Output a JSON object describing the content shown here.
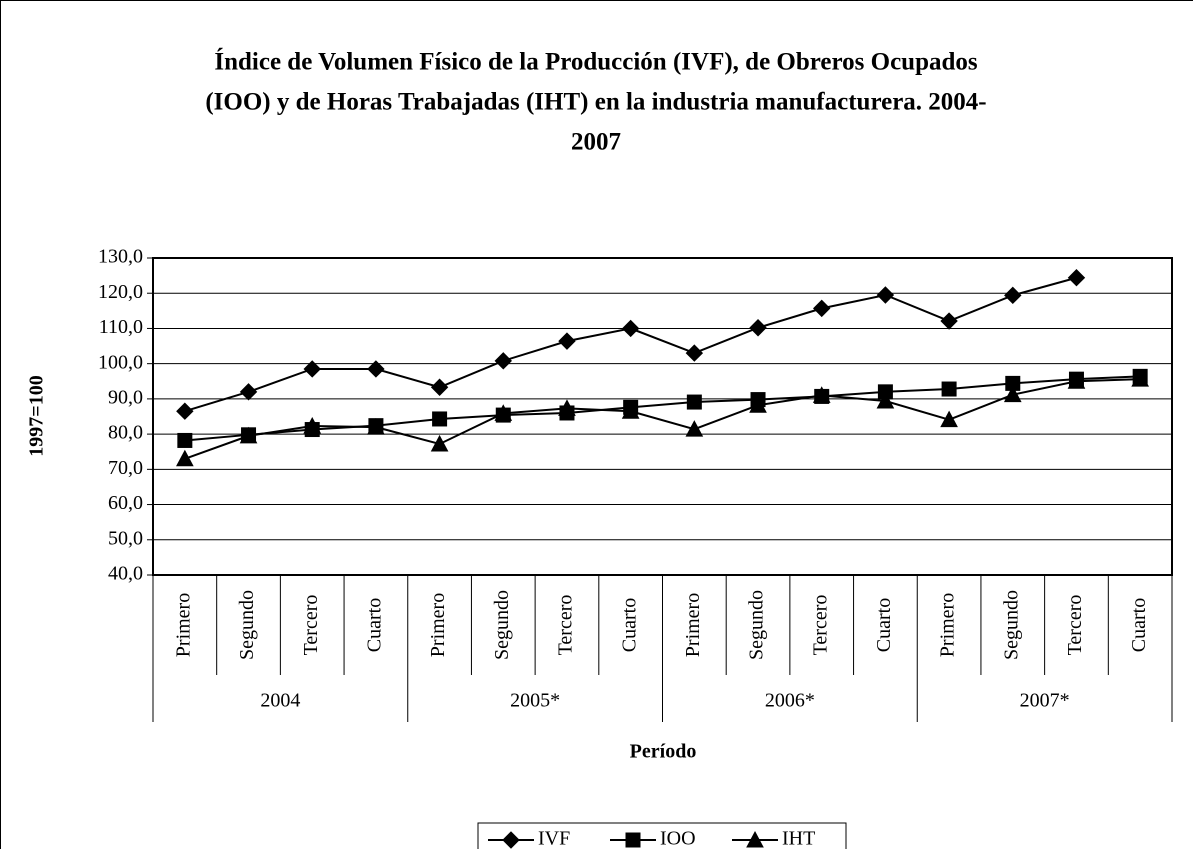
{
  "chart_data": {
    "type": "line",
    "title": [
      "Índice de Volumen Físico de la Producción (IVF), de Obreros Ocupados",
      "(IOO) y de Horas Trabajadas (IHT) en la industria manufacturera. 2004-",
      "2007"
    ],
    "y_label": "1997=100",
    "x_label": "Período",
    "categories": [
      "Primero",
      "Segundo",
      "Tercero",
      "Cuarto",
      "Primero",
      "Segundo",
      "Tercero",
      "Cuarto",
      "Primero",
      "Segundo",
      "Tercero",
      "Cuarto",
      "Primero",
      "Segundo",
      "Tercero",
      "Cuarto"
    ],
    "years": [
      "2004",
      "2005*",
      "2006*",
      "2007*"
    ],
    "ylim": [
      40,
      130
    ],
    "yticks": [
      {
        "value": 40,
        "label": "40,0"
      },
      {
        "value": 50,
        "label": "50,0"
      },
      {
        "value": 60,
        "label": "60,0"
      },
      {
        "value": 70,
        "label": "70,0"
      },
      {
        "value": 80,
        "label": "80,0"
      },
      {
        "value": 90,
        "label": "90,0"
      },
      {
        "value": 100,
        "label": "100,0"
      },
      {
        "value": 110,
        "label": "110,0"
      },
      {
        "value": 120,
        "label": "120,0"
      },
      {
        "value": 130,
        "label": "130,0"
      }
    ],
    "grid": true,
    "legend": "bottom",
    "series": [
      {
        "name": "IVF",
        "color": "#000000",
        "marker": "diamond",
        "values": [
          86.5,
          92.0,
          98.5,
          98.5,
          93.3,
          100.8,
          106.4,
          110.0,
          103.0,
          110.2,
          115.7,
          119.5,
          112.1,
          119.4,
          124.4,
          null
        ]
      },
      {
        "name": "IOO",
        "color": "#000000",
        "marker": "square",
        "values": [
          78.2,
          79.8,
          81.3,
          82.4,
          84.3,
          85.4,
          86.0,
          87.6,
          89.1,
          89.8,
          90.7,
          92.0,
          92.8,
          94.4,
          95.6,
          96.4
        ]
      },
      {
        "name": "IHT",
        "color": "#000000",
        "marker": "triangle",
        "values": [
          73.0,
          79.5,
          82.3,
          82.0,
          77.2,
          85.9,
          87.3,
          86.5,
          81.4,
          88.2,
          91.0,
          89.4,
          84.1,
          91.2,
          95.0,
          95.6
        ]
      }
    ]
  }
}
